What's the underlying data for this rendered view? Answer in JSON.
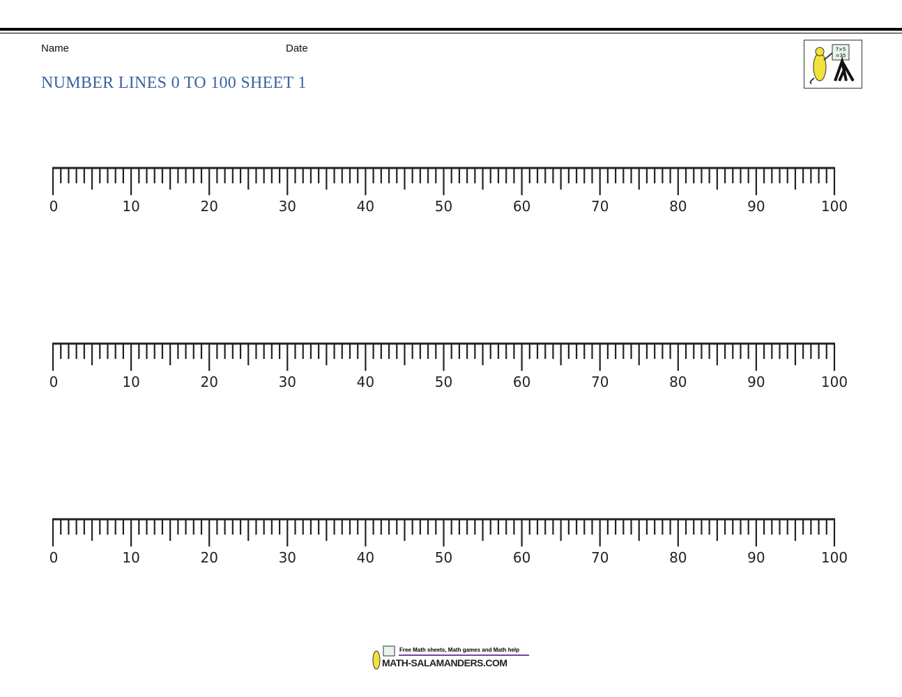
{
  "header": {
    "name_label": "Name",
    "date_label": "Date",
    "title": "NUMBER LINES 0 TO 100 SHEET 1",
    "logo": "math-salamanders-logo"
  },
  "number_lines": [
    {
      "start": 0,
      "end": 100,
      "minor_step": 1,
      "mid_step": 5,
      "label_step": 10,
      "labels": [
        "0",
        "10",
        "20",
        "30",
        "40",
        "50",
        "60",
        "70",
        "80",
        "90",
        "100"
      ]
    },
    {
      "start": 0,
      "end": 100,
      "minor_step": 1,
      "mid_step": 5,
      "label_step": 10,
      "labels": [
        "0",
        "10",
        "20",
        "30",
        "40",
        "50",
        "60",
        "70",
        "80",
        "90",
        "100"
      ]
    },
    {
      "start": 0,
      "end": 100,
      "minor_step": 1,
      "mid_step": 5,
      "label_step": 10,
      "labels": [
        "0",
        "10",
        "20",
        "30",
        "40",
        "50",
        "60",
        "70",
        "80",
        "90",
        "100"
      ]
    }
  ],
  "footer": {
    "tagline": "Free Math sheets, Math games and Math help",
    "site": "MATH-SALAMANDERS.COM"
  },
  "colors": {
    "title": "#3a62a0",
    "footer_rule": "#7b3fa0"
  }
}
